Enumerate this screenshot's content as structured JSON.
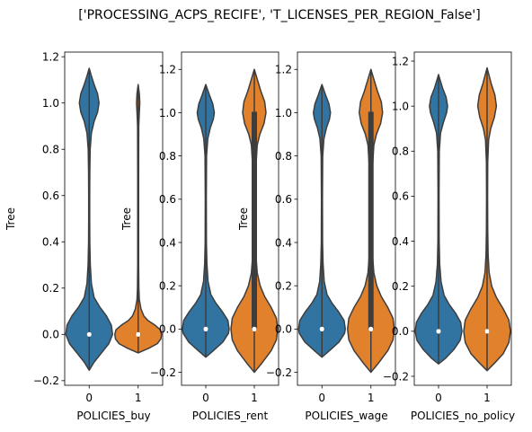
{
  "figure": {
    "title": "['PROCESSING_ACPS_RECIFE', 'T_LICENSES_PER_REGION_False']"
  },
  "colors": {
    "series_0": "#3274a1",
    "series_1": "#e1812c",
    "outline": "#3d3d3d",
    "box": "#3d3d3d"
  },
  "chart_data": [
    {
      "type": "violin",
      "xlabel": "POLICIES_buy",
      "ylabel": "Tree",
      "categories": [
        "0",
        "1"
      ],
      "ylim": [
        -0.22,
        1.22
      ],
      "yticks": [
        -0.2,
        0.0,
        0.2,
        0.4,
        0.6,
        0.8,
        1.0,
        1.2
      ],
      "yticklabels": [
        "−0.2",
        "0.0",
        "0.2",
        "0.4",
        "0.6",
        "0.8",
        "1.0",
        "1.2"
      ],
      "violins": [
        {
          "category": "0",
          "range": [
            -0.155,
            1.15
          ],
          "median": 0.0,
          "box": [
            0.0,
            0.0
          ],
          "whisker": [
            -0.155,
            1.15
          ],
          "profile": [
            [
              -0.155,
              0.0
            ],
            [
              -0.12,
              0.2
            ],
            [
              -0.08,
              0.5
            ],
            [
              -0.04,
              0.8
            ],
            [
              0.0,
              0.95
            ],
            [
              0.04,
              0.9
            ],
            [
              0.08,
              0.7
            ],
            [
              0.12,
              0.42
            ],
            [
              0.16,
              0.2
            ],
            [
              0.22,
              0.09
            ],
            [
              0.3,
              0.045
            ],
            [
              0.4,
              0.025
            ],
            [
              0.5,
              0.02
            ],
            [
              0.6,
              0.02
            ],
            [
              0.7,
              0.025
            ],
            [
              0.8,
              0.04
            ],
            [
              0.87,
              0.09
            ],
            [
              0.92,
              0.2
            ],
            [
              0.96,
              0.34
            ],
            [
              1.0,
              0.4
            ],
            [
              1.04,
              0.34
            ],
            [
              1.08,
              0.2
            ],
            [
              1.12,
              0.08
            ],
            [
              1.15,
              0.0
            ]
          ]
        },
        {
          "category": "1",
          "range": [
            -0.08,
            1.08
          ],
          "median": 0.0,
          "box": [
            0.0,
            0.0
          ],
          "whisker": [
            -0.08,
            1.08
          ],
          "profile": [
            [
              -0.08,
              0.0
            ],
            [
              -0.06,
              0.45
            ],
            [
              -0.04,
              0.82
            ],
            [
              -0.02,
              0.97
            ],
            [
              0.0,
              1.0
            ],
            [
              0.02,
              0.95
            ],
            [
              0.04,
              0.72
            ],
            [
              0.06,
              0.42
            ],
            [
              0.08,
              0.24
            ],
            [
              0.11,
              0.12
            ],
            [
              0.15,
              0.05
            ],
            [
              0.2,
              0.03
            ],
            [
              0.3,
              0.02
            ],
            [
              0.5,
              0.02
            ],
            [
              0.7,
              0.02
            ],
            [
              0.9,
              0.025
            ],
            [
              0.96,
              0.05
            ],
            [
              1.0,
              0.07
            ],
            [
              1.04,
              0.05
            ],
            [
              1.08,
              0.0
            ]
          ]
        }
      ]
    },
    {
      "type": "violin",
      "xlabel": "POLICIES_rent",
      "ylabel": "Tree",
      "categories": [
        "0",
        "1"
      ],
      "ylim": [
        -0.26,
        1.28
      ],
      "yticks": [
        -0.2,
        0.0,
        0.2,
        0.4,
        0.6,
        0.8,
        1.0,
        1.2
      ],
      "yticklabels": [
        "−0.2",
        "0.0",
        "0.2",
        "0.4",
        "0.6",
        "0.8",
        "1.0",
        "1.2"
      ],
      "violins": [
        {
          "category": "0",
          "range": [
            -0.13,
            1.13
          ],
          "median": 0.0,
          "box": [
            0.0,
            0.0
          ],
          "whisker": [
            -0.13,
            1.13
          ],
          "profile": [
            [
              -0.13,
              0.0
            ],
            [
              -0.1,
              0.3
            ],
            [
              -0.06,
              0.68
            ],
            [
              -0.02,
              0.9
            ],
            [
              0.0,
              0.93
            ],
            [
              0.04,
              0.88
            ],
            [
              0.08,
              0.66
            ],
            [
              0.12,
              0.4
            ],
            [
              0.16,
              0.2
            ],
            [
              0.22,
              0.09
            ],
            [
              0.3,
              0.045
            ],
            [
              0.4,
              0.025
            ],
            [
              0.6,
              0.02
            ],
            [
              0.8,
              0.03
            ],
            [
              0.88,
              0.08
            ],
            [
              0.93,
              0.18
            ],
            [
              0.97,
              0.3
            ],
            [
              1.0,
              0.34
            ],
            [
              1.04,
              0.28
            ],
            [
              1.08,
              0.15
            ],
            [
              1.13,
              0.0
            ]
          ]
        },
        {
          "category": "1",
          "range": [
            -0.2,
            1.2
          ],
          "median": 0.0,
          "box": [
            0.0,
            1.0
          ],
          "whisker": [
            -0.2,
            1.2
          ],
          "profile": [
            [
              -0.2,
              0.0
            ],
            [
              -0.16,
              0.22
            ],
            [
              -0.1,
              0.52
            ],
            [
              -0.05,
              0.68
            ],
            [
              0.0,
              0.72
            ],
            [
              0.05,
              0.68
            ],
            [
              0.1,
              0.52
            ],
            [
              0.15,
              0.32
            ],
            [
              0.2,
              0.18
            ],
            [
              0.26,
              0.09
            ],
            [
              0.34,
              0.05
            ],
            [
              0.45,
              0.035
            ],
            [
              0.55,
              0.035
            ],
            [
              0.65,
              0.04
            ],
            [
              0.75,
              0.05
            ],
            [
              0.85,
              0.09
            ],
            [
              0.9,
              0.17
            ],
            [
              0.95,
              0.3
            ],
            [
              1.0,
              0.36
            ],
            [
              1.05,
              0.32
            ],
            [
              1.1,
              0.2
            ],
            [
              1.15,
              0.1
            ],
            [
              1.2,
              0.0
            ]
          ]
        }
      ]
    },
    {
      "type": "violin",
      "xlabel": "POLICIES_wage",
      "ylabel": "Tree",
      "categories": [
        "0",
        "1"
      ],
      "ylim": [
        -0.26,
        1.28
      ],
      "yticks": [
        -0.2,
        0.0,
        0.2,
        0.4,
        0.6,
        0.8,
        1.0,
        1.2
      ],
      "yticklabels": [
        "−0.2",
        "0.0",
        "0.2",
        "0.4",
        "0.6",
        "0.8",
        "1.0",
        "1.2"
      ],
      "violins": [
        {
          "category": "0",
          "range": [
            -0.13,
            1.13
          ],
          "median": 0.0,
          "box": [
            0.0,
            0.0
          ],
          "whisker": [
            -0.13,
            1.13
          ],
          "profile": [
            [
              -0.13,
              0.0
            ],
            [
              -0.1,
              0.3
            ],
            [
              -0.06,
              0.68
            ],
            [
              -0.02,
              0.9
            ],
            [
              0.0,
              0.93
            ],
            [
              0.04,
              0.88
            ],
            [
              0.08,
              0.66
            ],
            [
              0.12,
              0.4
            ],
            [
              0.16,
              0.2
            ],
            [
              0.22,
              0.09
            ],
            [
              0.3,
              0.045
            ],
            [
              0.4,
              0.025
            ],
            [
              0.6,
              0.02
            ],
            [
              0.8,
              0.03
            ],
            [
              0.88,
              0.08
            ],
            [
              0.93,
              0.18
            ],
            [
              0.97,
              0.3
            ],
            [
              1.0,
              0.34
            ],
            [
              1.04,
              0.28
            ],
            [
              1.08,
              0.15
            ],
            [
              1.13,
              0.0
            ]
          ]
        },
        {
          "category": "1",
          "range": [
            -0.2,
            1.2
          ],
          "median": 0.0,
          "box": [
            0.0,
            1.0
          ],
          "whisker": [
            -0.2,
            1.2
          ],
          "profile": [
            [
              -0.2,
              0.0
            ],
            [
              -0.16,
              0.22
            ],
            [
              -0.1,
              0.52
            ],
            [
              -0.05,
              0.68
            ],
            [
              0.0,
              0.72
            ],
            [
              0.05,
              0.68
            ],
            [
              0.1,
              0.52
            ],
            [
              0.15,
              0.32
            ],
            [
              0.2,
              0.18
            ],
            [
              0.26,
              0.09
            ],
            [
              0.34,
              0.05
            ],
            [
              0.45,
              0.035
            ],
            [
              0.55,
              0.035
            ],
            [
              0.65,
              0.04
            ],
            [
              0.75,
              0.05
            ],
            [
              0.85,
              0.09
            ],
            [
              0.9,
              0.17
            ],
            [
              0.95,
              0.3
            ],
            [
              1.0,
              0.36
            ],
            [
              1.05,
              0.32
            ],
            [
              1.1,
              0.2
            ],
            [
              1.15,
              0.1
            ],
            [
              1.2,
              0.0
            ]
          ]
        }
      ]
    },
    {
      "type": "violin",
      "xlabel": "POLICIES_no_policy",
      "ylabel": "",
      "categories": [
        "0",
        "1"
      ],
      "ylim": [
        -0.24,
        1.24
      ],
      "yticks": [
        -0.2,
        0.0,
        0.2,
        0.4,
        0.6,
        0.8,
        1.0,
        1.2
      ],
      "yticklabels": [
        "−0.2",
        "0.0",
        "0.2",
        "0.4",
        "0.6",
        "0.8",
        "1.0",
        "1.2"
      ],
      "violins": [
        {
          "category": "0",
          "range": [
            -0.145,
            1.14
          ],
          "median": 0.0,
          "box": [
            0.0,
            0.0
          ],
          "whisker": [
            -0.145,
            1.14
          ],
          "profile": [
            [
              -0.145,
              0.0
            ],
            [
              -0.12,
              0.28
            ],
            [
              -0.08,
              0.62
            ],
            [
              -0.04,
              0.86
            ],
            [
              0.0,
              0.93
            ],
            [
              0.04,
              0.88
            ],
            [
              0.08,
              0.68
            ],
            [
              0.12,
              0.42
            ],
            [
              0.16,
              0.22
            ],
            [
              0.22,
              0.1
            ],
            [
              0.3,
              0.045
            ],
            [
              0.4,
              0.025
            ],
            [
              0.6,
              0.02
            ],
            [
              0.8,
              0.03
            ],
            [
              0.88,
              0.08
            ],
            [
              0.93,
              0.2
            ],
            [
              0.97,
              0.32
            ],
            [
              1.0,
              0.36
            ],
            [
              1.04,
              0.3
            ],
            [
              1.08,
              0.16
            ],
            [
              1.14,
              0.0
            ]
          ]
        },
        {
          "category": "1",
          "range": [
            -0.175,
            1.17
          ],
          "median": 0.0,
          "box": [
            0.0,
            0.0
          ],
          "whisker": [
            -0.175,
            1.17
          ],
          "profile": [
            [
              -0.175,
              0.0
            ],
            [
              -0.14,
              0.3
            ],
            [
              -0.1,
              0.62
            ],
            [
              -0.05,
              0.84
            ],
            [
              0.0,
              0.9
            ],
            [
              0.05,
              0.84
            ],
            [
              0.1,
              0.62
            ],
            [
              0.15,
              0.36
            ],
            [
              0.2,
              0.18
            ],
            [
              0.26,
              0.08
            ],
            [
              0.34,
              0.04
            ],
            [
              0.45,
              0.025
            ],
            [
              0.6,
              0.02
            ],
            [
              0.75,
              0.025
            ],
            [
              0.85,
              0.06
            ],
            [
              0.9,
              0.14
            ],
            [
              0.95,
              0.28
            ],
            [
              1.0,
              0.36
            ],
            [
              1.05,
              0.3
            ],
            [
              1.1,
              0.16
            ],
            [
              1.17,
              0.0
            ]
          ]
        }
      ]
    }
  ]
}
